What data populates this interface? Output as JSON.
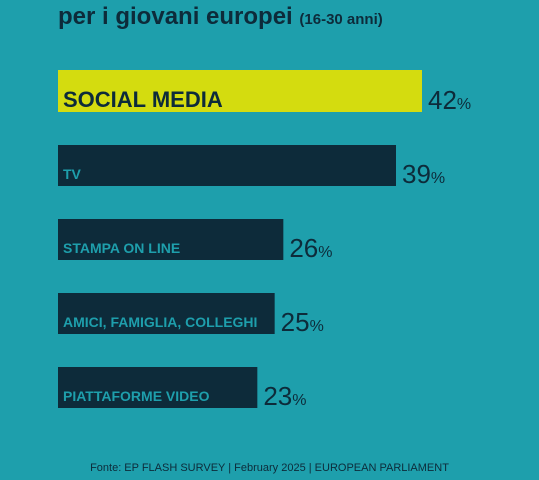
{
  "title": {
    "main": "per i giovani europei",
    "subtitle": "(16-30 anni)"
  },
  "chart_data": {
    "type": "bar",
    "orientation": "horizontal",
    "categories": [
      "SOCIAL MEDIA",
      "TV",
      "STAMPA ON LINE",
      "AMICI, FAMIGLIA, COLLEGHI",
      "PIATTAFORME VIDEO"
    ],
    "values": [
      42,
      39,
      26,
      25,
      23
    ],
    "unit": "%",
    "xlim": [
      0,
      42
    ],
    "grid": false,
    "legend": "none",
    "highlight_index": 0
  },
  "colors": {
    "background": "#1e9fac",
    "bar": "#0d2b3a",
    "highlight_bar": "#d4dc0f",
    "bar_label": "#1e9fac",
    "highlight_label": "#0d2b3a",
    "value_text": "#0d2b3a"
  },
  "footer": "Fonte: EP FLASH SURVEY | February 2025 |  EUROPEAN PARLIAMENT"
}
